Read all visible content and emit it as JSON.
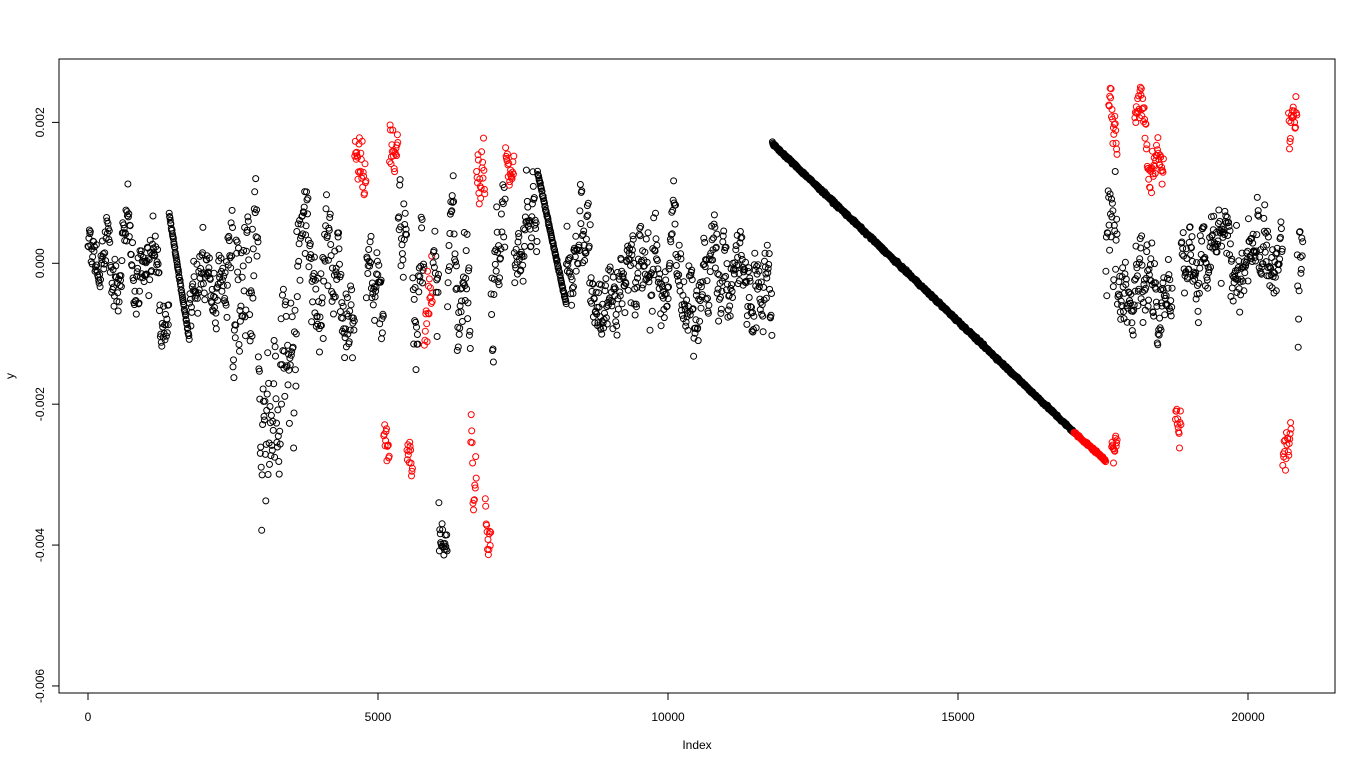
{
  "chart_data": {
    "type": "scatter",
    "xlabel": "Index",
    "ylabel": "y",
    "xlim": [
      -500,
      21500
    ],
    "ylim": [
      -0.0061,
      0.0029
    ],
    "x_ticks": [
      0,
      5000,
      10000,
      15000,
      20000
    ],
    "x_tick_labels": [
      "0",
      "5000",
      "10000",
      "15000",
      "20000"
    ],
    "y_ticks": [
      -0.006,
      -0.004,
      -0.002,
      0.0,
      0.002
    ],
    "y_tick_labels": [
      "-0.006",
      "-0.004",
      "-0.002",
      "0.000",
      "0.002"
    ],
    "grid": false,
    "legend": "none",
    "marker": "open-circle",
    "colors": {
      "normal": "#000000",
      "highlight": "#ff0000"
    },
    "ceiling_value": 0.0025,
    "regions": [
      {
        "x_start": 0,
        "x_end": 1400,
        "mean": 0.0,
        "spread": 0.0008,
        "color": "normal"
      },
      {
        "x_start": 1400,
        "x_end": 1750,
        "y_start": 0.0007,
        "y_end": -0.0011,
        "kind": "linear",
        "color": "normal"
      },
      {
        "x_start": 1750,
        "x_end": 2500,
        "mean": -0.0003,
        "spread": 0.001,
        "color": "normal"
      },
      {
        "x_start": 2500,
        "x_end": 3600,
        "mean": -0.0015,
        "spread": 0.0022,
        "color": "normal"
      },
      {
        "x_start": 3600,
        "x_end": 4600,
        "mean": 0.0002,
        "spread": 0.0013,
        "color": "normal"
      },
      {
        "x_start": 4600,
        "x_end": 4800,
        "mean": 0.0013,
        "spread": 0.0009,
        "color": "highlight"
      },
      {
        "x_start": 4800,
        "x_end": 5100,
        "mean": -0.0002,
        "spread": 0.0012,
        "color": "normal"
      },
      {
        "x_start": 5100,
        "x_end": 5200,
        "mean": -0.0025,
        "spread": 0.0006,
        "color": "highlight"
      },
      {
        "x_start": 5200,
        "x_end": 5350,
        "mean": 0.0017,
        "spread": 0.0007,
        "color": "highlight"
      },
      {
        "x_start": 5350,
        "x_end": 5500,
        "mean": 0.0,
        "spread": 0.0013,
        "color": "normal"
      },
      {
        "x_start": 5500,
        "x_end": 5600,
        "mean": -0.0027,
        "spread": 0.0006,
        "color": "highlight"
      },
      {
        "x_start": 5600,
        "x_end": 5800,
        "mean": 0.0,
        "spread": 0.0013,
        "color": "normal"
      },
      {
        "x_start": 5800,
        "x_end": 5950,
        "mean": -0.0015,
        "spread": 0.0012,
        "color": "highlight"
      },
      {
        "x_start": 5950,
        "x_end": 6050,
        "mean": 0.0,
        "spread": 0.0013,
        "color": "normal"
      },
      {
        "x_start": 6050,
        "x_end": 6200,
        "mean": -0.0035,
        "spread": 0.0006,
        "color": "normal"
      },
      {
        "x_start": 6200,
        "x_end": 6600,
        "mean": -0.0003,
        "spread": 0.0014,
        "color": "normal"
      },
      {
        "x_start": 6600,
        "x_end": 6700,
        "mean": -0.0022,
        "spread": 0.0009,
        "color": "highlight"
      },
      {
        "x_start": 6700,
        "x_end": 6850,
        "mean": 0.0015,
        "spread": 0.0008,
        "color": "highlight"
      },
      {
        "x_start": 6850,
        "x_end": 6950,
        "mean": -0.0035,
        "spread": 0.0007,
        "color": "highlight"
      },
      {
        "x_start": 6950,
        "x_end": 7200,
        "mean": -0.0002,
        "spread": 0.0014,
        "color": "normal"
      },
      {
        "x_start": 7200,
        "x_end": 7350,
        "mean": 0.0017,
        "spread": 0.0006,
        "color": "highlight"
      },
      {
        "x_start": 7350,
        "x_end": 7750,
        "mean": -0.0001,
        "spread": 0.0011,
        "color": "normal"
      },
      {
        "x_start": 7750,
        "x_end": 8250,
        "y_start": 0.0013,
        "y_end": -0.0006,
        "kind": "linear",
        "color": "normal"
      },
      {
        "x_start": 8250,
        "x_end": 11800,
        "mean": 0.0,
        "spread": 0.0011,
        "color": "normal"
      },
      {
        "x_start": 11800,
        "x_end": 17000,
        "y_start": 0.0017,
        "y_end": -0.0024,
        "kind": "linear",
        "color": "normal"
      },
      {
        "x_start": 17000,
        "x_end": 17550,
        "y_start": -0.0024,
        "y_end": -0.0028,
        "kind": "linear",
        "color": "highlight"
      },
      {
        "x_start": 17550,
        "x_end": 17750,
        "mean": 0.0,
        "spread": 0.0015,
        "color": "normal"
      },
      {
        "x_start": 17600,
        "x_end": 17750,
        "mean": 0.002,
        "spread": 0.0006,
        "color": "highlight"
      },
      {
        "x_start": 17650,
        "x_end": 17750,
        "mean": -0.0026,
        "spread": 0.0005,
        "color": "highlight"
      },
      {
        "x_start": 17750,
        "x_end": 18700,
        "mean": -0.0001,
        "spread": 0.0011,
        "color": "normal"
      },
      {
        "x_start": 18050,
        "x_end": 18550,
        "mean": 0.002,
        "spread": 0.0006,
        "color": "highlight"
      },
      {
        "x_start": 18750,
        "x_end": 18850,
        "mean": -0.0022,
        "spread": 0.0006,
        "color": "highlight"
      },
      {
        "x_start": 18850,
        "x_end": 20600,
        "mean": 0.0,
        "spread": 0.001,
        "color": "normal"
      },
      {
        "x_start": 20600,
        "x_end": 20750,
        "mean": -0.0026,
        "spread": 0.0006,
        "color": "highlight"
      },
      {
        "x_start": 20700,
        "x_end": 20850,
        "mean": 0.002,
        "spread": 0.0006,
        "color": "highlight"
      },
      {
        "x_start": 20850,
        "x_end": 20950,
        "mean": 0.0,
        "spread": 0.0012,
        "color": "normal"
      }
    ]
  }
}
